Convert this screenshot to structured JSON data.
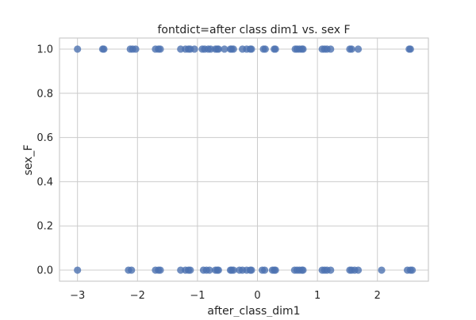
{
  "chart_data": {
    "type": "scatter",
    "title": "fontdict=after class dim1 vs. sex F",
    "xlabel": "after_class_dim1",
    "ylabel": "sex_F",
    "xlim": [
      -3.3,
      2.85
    ],
    "ylim": [
      -0.05,
      1.05
    ],
    "xticks": [
      -3,
      -2,
      -1,
      0,
      1,
      2
    ],
    "yticks": [
      0.0,
      0.2,
      0.4,
      0.6,
      0.8,
      1.0
    ],
    "xtick_labels": [
      "−3",
      "−2",
      "−1",
      "0",
      "1",
      "2"
    ],
    "ytick_labels": [
      "0.0",
      "0.2",
      "0.4",
      "0.6",
      "0.8",
      "1.0"
    ],
    "grid": true,
    "marker_color": "#4c72b0",
    "grid_color": "#cccccc",
    "spine_color": "#cccccc",
    "series": [
      {
        "values": [
          {
            "x": -3.0,
            "y": 1
          },
          {
            "x": -2.58,
            "y": 1
          },
          {
            "x": -2.56,
            "y": 1
          },
          {
            "x": -2.12,
            "y": 1
          },
          {
            "x": -2.08,
            "y": 1
          },
          {
            "x": -2.03,
            "y": 1
          },
          {
            "x": -1.7,
            "y": 1
          },
          {
            "x": -1.65,
            "y": 1
          },
          {
            "x": -1.62,
            "y": 1
          },
          {
            "x": -1.28,
            "y": 1
          },
          {
            "x": -1.2,
            "y": 1
          },
          {
            "x": -1.15,
            "y": 1
          },
          {
            "x": -1.12,
            "y": 1
          },
          {
            "x": -1.05,
            "y": 1
          },
          {
            "x": -0.92,
            "y": 1
          },
          {
            "x": -0.88,
            "y": 1
          },
          {
            "x": -0.82,
            "y": 1
          },
          {
            "x": -0.78,
            "y": 1
          },
          {
            "x": -0.7,
            "y": 1
          },
          {
            "x": -0.67,
            "y": 1
          },
          {
            "x": -0.65,
            "y": 1
          },
          {
            "x": -0.55,
            "y": 1
          },
          {
            "x": -0.45,
            "y": 1
          },
          {
            "x": -0.43,
            "y": 1
          },
          {
            "x": -0.4,
            "y": 1
          },
          {
            "x": -0.25,
            "y": 1
          },
          {
            "x": -0.18,
            "y": 1
          },
          {
            "x": -0.12,
            "y": 1
          },
          {
            "x": -0.1,
            "y": 1
          },
          {
            "x": 0.1,
            "y": 1
          },
          {
            "x": 0.13,
            "y": 1
          },
          {
            "x": 0.28,
            "y": 1
          },
          {
            "x": 0.3,
            "y": 1
          },
          {
            "x": 0.63,
            "y": 1
          },
          {
            "x": 0.66,
            "y": 1
          },
          {
            "x": 0.7,
            "y": 1
          },
          {
            "x": 0.74,
            "y": 1
          },
          {
            "x": 0.76,
            "y": 1
          },
          {
            "x": 1.08,
            "y": 1
          },
          {
            "x": 1.12,
            "y": 1
          },
          {
            "x": 1.16,
            "y": 1
          },
          {
            "x": 1.22,
            "y": 1
          },
          {
            "x": 1.54,
            "y": 1
          },
          {
            "x": 1.57,
            "y": 1
          },
          {
            "x": 1.68,
            "y": 1
          },
          {
            "x": 2.53,
            "y": 1
          },
          {
            "x": 2.55,
            "y": 1
          },
          {
            "x": -3.0,
            "y": 0
          },
          {
            "x": -2.15,
            "y": 0
          },
          {
            "x": -2.1,
            "y": 0
          },
          {
            "x": -1.7,
            "y": 0
          },
          {
            "x": -1.65,
            "y": 0
          },
          {
            "x": -1.62,
            "y": 0
          },
          {
            "x": -1.28,
            "y": 0
          },
          {
            "x": -1.2,
            "y": 0
          },
          {
            "x": -1.15,
            "y": 0
          },
          {
            "x": -1.12,
            "y": 0
          },
          {
            "x": -0.9,
            "y": 0
          },
          {
            "x": -0.85,
            "y": 0
          },
          {
            "x": -0.8,
            "y": 0
          },
          {
            "x": -0.7,
            "y": 0
          },
          {
            "x": -0.67,
            "y": 0
          },
          {
            "x": -0.65,
            "y": 0
          },
          {
            "x": -0.45,
            "y": 0
          },
          {
            "x": -0.43,
            "y": 0
          },
          {
            "x": -0.4,
            "y": 0
          },
          {
            "x": -0.3,
            "y": 0
          },
          {
            "x": -0.25,
            "y": 0
          },
          {
            "x": -0.18,
            "y": 0
          },
          {
            "x": -0.12,
            "y": 0
          },
          {
            "x": -0.1,
            "y": 0
          },
          {
            "x": 0.08,
            "y": 0
          },
          {
            "x": 0.12,
            "y": 0
          },
          {
            "x": 0.25,
            "y": 0
          },
          {
            "x": 0.28,
            "y": 0
          },
          {
            "x": 0.3,
            "y": 0
          },
          {
            "x": 0.62,
            "y": 0
          },
          {
            "x": 0.66,
            "y": 0
          },
          {
            "x": 0.7,
            "y": 0
          },
          {
            "x": 0.74,
            "y": 0
          },
          {
            "x": 0.76,
            "y": 0
          },
          {
            "x": 1.08,
            "y": 0
          },
          {
            "x": 1.12,
            "y": 0
          },
          {
            "x": 1.16,
            "y": 0
          },
          {
            "x": 1.22,
            "y": 0
          },
          {
            "x": 1.54,
            "y": 0
          },
          {
            "x": 1.57,
            "y": 0
          },
          {
            "x": 1.62,
            "y": 0
          },
          {
            "x": 1.68,
            "y": 0
          },
          {
            "x": 2.07,
            "y": 0
          },
          {
            "x": 2.5,
            "y": 0
          },
          {
            "x": 2.55,
            "y": 0
          },
          {
            "x": 2.58,
            "y": 0
          }
        ]
      }
    ]
  }
}
